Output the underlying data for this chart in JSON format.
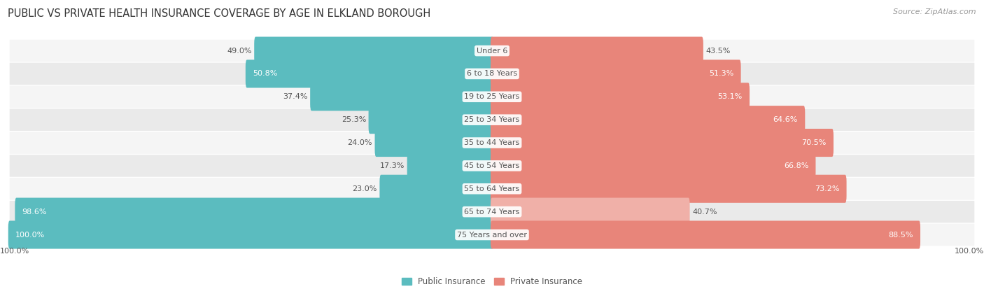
{
  "title": "PUBLIC VS PRIVATE HEALTH INSURANCE COVERAGE BY AGE IN ELKLAND BOROUGH",
  "source": "Source: ZipAtlas.com",
  "categories": [
    "Under 6",
    "6 to 18 Years",
    "19 to 25 Years",
    "25 to 34 Years",
    "35 to 44 Years",
    "45 to 54 Years",
    "55 to 64 Years",
    "65 to 74 Years",
    "75 Years and over"
  ],
  "public_values": [
    49.0,
    50.8,
    37.4,
    25.3,
    24.0,
    17.3,
    23.0,
    98.6,
    100.0
  ],
  "private_values": [
    43.5,
    51.3,
    53.1,
    64.6,
    70.5,
    66.8,
    73.2,
    40.7,
    88.5
  ],
  "public_color": "#5bbcbf",
  "private_color": "#e8857a",
  "private_color_light": "#f0b0a8",
  "row_bg_odd": "#f5f5f5",
  "row_bg_even": "#eaeaea",
  "title_fontsize": 10.5,
  "label_fontsize": 8,
  "value_fontsize": 8,
  "legend_fontsize": 8.5,
  "source_fontsize": 8,
  "bar_height": 0.62,
  "max_value": 100.0,
  "background_color": "#ffffff",
  "center_label_bg": "#ffffff",
  "dark_text_color": "#555555",
  "white_text_color": "#ffffff"
}
